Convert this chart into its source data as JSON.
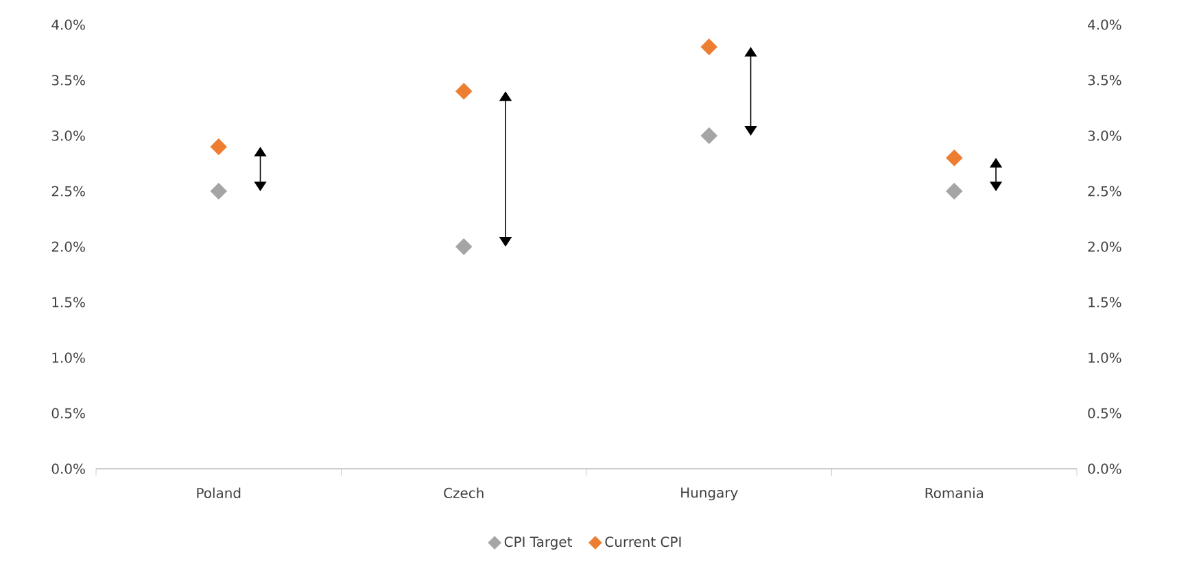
{
  "chart_data": {
    "type": "scatter",
    "categories": [
      "Poland",
      "Czech",
      "Hungary",
      "Romania"
    ],
    "series": [
      {
        "name": "CPI Target",
        "color": "#a5a5a5",
        "values": [
          2.5,
          2.0,
          3.0,
          2.5
        ]
      },
      {
        "name": "Current CPI",
        "color": "#ed7d31",
        "values": [
          2.9,
          3.4,
          3.8,
          2.8
        ]
      }
    ],
    "ylim": [
      0,
      4
    ],
    "yticks": [
      {
        "value": 0,
        "label": "0.0%"
      },
      {
        "value": 0.5,
        "label": "0.5%"
      },
      {
        "value": 1,
        "label": "1.0%"
      },
      {
        "value": 1.5,
        "label": "1.5%"
      },
      {
        "value": 2,
        "label": "2.0%"
      },
      {
        "value": 2.5,
        "label": "2.5%"
      },
      {
        "value": 3,
        "label": "3.0%"
      },
      {
        "value": 3.5,
        "label": "3.5%"
      },
      {
        "value": 4,
        "label": "4.0%"
      }
    ],
    "y2lim": [
      0,
      4
    ],
    "y2ticks": [
      {
        "value": 0,
        "label": "0.0%"
      },
      {
        "value": 0.5,
        "label": "0.5%"
      },
      {
        "value": 1,
        "label": "1.0%"
      },
      {
        "value": 1.5,
        "label": "1.5%"
      },
      {
        "value": 2,
        "label": "2.0%"
      },
      {
        "value": 2.5,
        "label": "2.5%"
      },
      {
        "value": 3,
        "label": "3.0%"
      },
      {
        "value": 3.5,
        "label": "3.5%"
      },
      {
        "value": 4,
        "label": "4.0%"
      }
    ],
    "marker": "diamond",
    "grid": false,
    "legend": "bottom"
  }
}
